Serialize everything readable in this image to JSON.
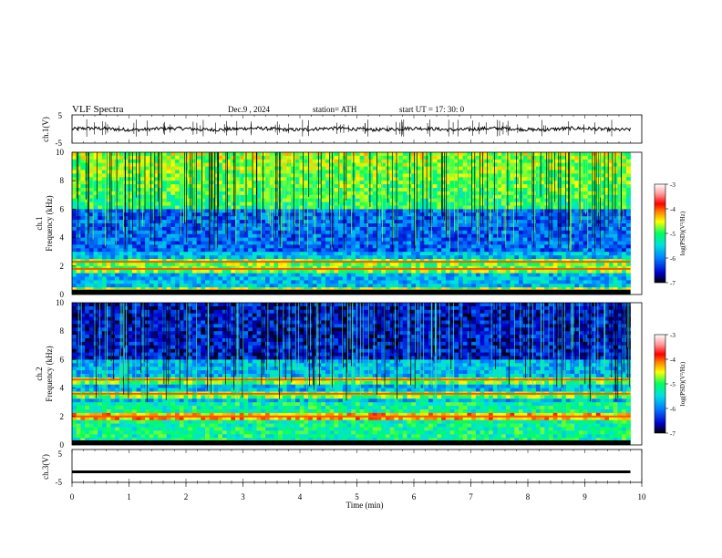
{
  "header": {
    "title": "VLF  Spectra",
    "date": "Dec.9  , 2024",
    "station": "station= ATH",
    "start_ut": "start  UT  =   17: 30: 0"
  },
  "chart_data": [
    {
      "id": "ch1-waveform",
      "type": "line",
      "ylabel": "ch.1(V)",
      "ylim": [
        -5,
        5
      ],
      "yticks": [
        "5",
        "-5"
      ],
      "xlim": [
        0,
        10
      ],
      "data_extent_min": 9.8,
      "trace_level_v": 0.0,
      "trace_noise_v": 0.6
    },
    {
      "id": "ch1-spectrogram",
      "type": "heatmap",
      "ylabel": "ch.1\nFrequency  (kHz)",
      "ylabel_line1": "ch.1",
      "ylabel_line2": "Frequency  (kHz)",
      "ylim": [
        0,
        10
      ],
      "yticks": [
        "0",
        "2",
        "4",
        "6",
        "8",
        "10"
      ],
      "xlim": [
        0,
        10
      ],
      "data_extent_min": 9.8,
      "colorbar": {
        "label": "log(PSD)(V²/Hz)",
        "range": [
          -7,
          -3
        ],
        "ticks": [
          "-3",
          "-4",
          "-5",
          "-6",
          "-7"
        ],
        "colors": [
          "#000000",
          "#0000cc",
          "#0080ff",
          "#00e0e0",
          "#00ff60",
          "#ffff00",
          "#ff8000",
          "#ff0000",
          "#ff9999",
          "#ffffff"
        ]
      },
      "bands_khz": [
        2.3,
        1.8,
        0.3
      ],
      "sferic_columns": 220
    },
    {
      "id": "ch2-spectrogram",
      "type": "heatmap",
      "ylabel_line1": "ch.2",
      "ylabel_line2": "Frequency  (kHz)",
      "ylim": [
        0,
        10
      ],
      "yticks": [
        "0",
        "2",
        "4",
        "6",
        "8",
        "10"
      ],
      "xlim": [
        0,
        10
      ],
      "data_extent_min": 9.8,
      "colorbar": {
        "label": "log(PSD)(V²/Hz)",
        "range": [
          -7,
          -3
        ],
        "ticks": [
          "-3",
          "-4",
          "-5",
          "-6",
          "-7"
        ]
      },
      "bands_khz": [
        4.6,
        3.6,
        2.0
      ]
    },
    {
      "id": "ch3-waveform",
      "type": "line",
      "ylabel": "ch.3(V)",
      "ylim": [
        -5,
        5
      ],
      "yticks": [
        "5",
        "-5"
      ],
      "xlim": [
        0,
        10
      ],
      "data_extent_min": 9.8,
      "trace_level_v": -1.8
    }
  ],
  "xaxis": {
    "label": "Time  (min)",
    "ticks": [
      "0",
      "1",
      "2",
      "3",
      "4",
      "5",
      "6",
      "7",
      "8",
      "9",
      "10"
    ]
  }
}
